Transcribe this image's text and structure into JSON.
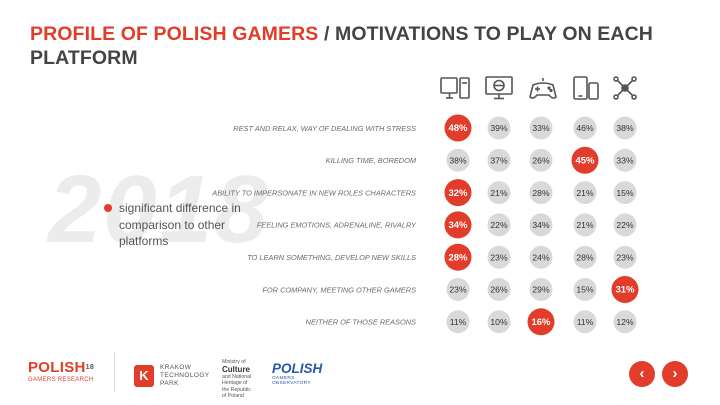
{
  "title": {
    "highlight": "PROFILE OF POLISH GAMERS",
    "rest": " / MOTIVATIONS TO PLAY ON EACH PLATFORM"
  },
  "watermark": "2018",
  "legend": {
    "text": "significant difference in comparison to other platforms",
    "color": "#e23c2a"
  },
  "footer": {
    "logo1_main": "POLISH",
    "logo1_year": "18",
    "logo1_sub": "GAMERS RESEARCH",
    "logo2_mark": "K",
    "logo2_line1": "KRAKOW",
    "logo2_line2": "TECHNOLOGY",
    "logo2_line3": "PARK",
    "logo3_line1": "Ministry of",
    "logo3_strong": "Culture",
    "logo3_line2": "and National",
    "logo3_line3": "Heritage of",
    "logo3_line4": "the Republic",
    "logo3_line5": "of Poland",
    "logo4_main": "POLISH",
    "logo4_sub": "GAMERS OBSERVATORY"
  },
  "nav": {
    "prev_icon": "chevron-left-icon",
    "next_icon": "chevron-right-icon"
  },
  "chart_data": {
    "type": "table",
    "platform_icons": [
      "desktop-pc-icon",
      "web-browser-icon",
      "gamepad-icon",
      "mobile-devices-icon",
      "network-icon"
    ],
    "categories": [
      "REST AND RELAX, WAY OF DEALING WITH STRESS",
      "KILLING TIME, BOREDOM",
      "ABILITY TO IMPERSONATE IN NEW ROLES CHARACTERS",
      "FEELING EMOTIONS, ADRENALINE, RIVALRY",
      "TO LEARN SOMETHING, DEVELOP NEW SKILLS",
      "FOR COMPANY, MEETING OTHER GAMERS",
      "NEITHER OF THOSE REASONS"
    ],
    "values": [
      [
        48,
        39,
        33,
        46,
        38
      ],
      [
        38,
        37,
        26,
        45,
        33
      ],
      [
        32,
        21,
        28,
        21,
        15
      ],
      [
        34,
        22,
        34,
        21,
        22
      ],
      [
        28,
        23,
        24,
        28,
        23
      ],
      [
        23,
        26,
        29,
        15,
        31
      ],
      [
        11,
        10,
        16,
        11,
        12
      ]
    ],
    "highlighted": [
      [
        0,
        0
      ],
      [
        1,
        3
      ],
      [
        2,
        0
      ],
      [
        3,
        0
      ],
      [
        4,
        0
      ],
      [
        5,
        4
      ],
      [
        6,
        2
      ]
    ],
    "value_suffix": "%",
    "colors": {
      "highlight": "#e23c2a",
      "normal": "#d9d9d9"
    }
  }
}
